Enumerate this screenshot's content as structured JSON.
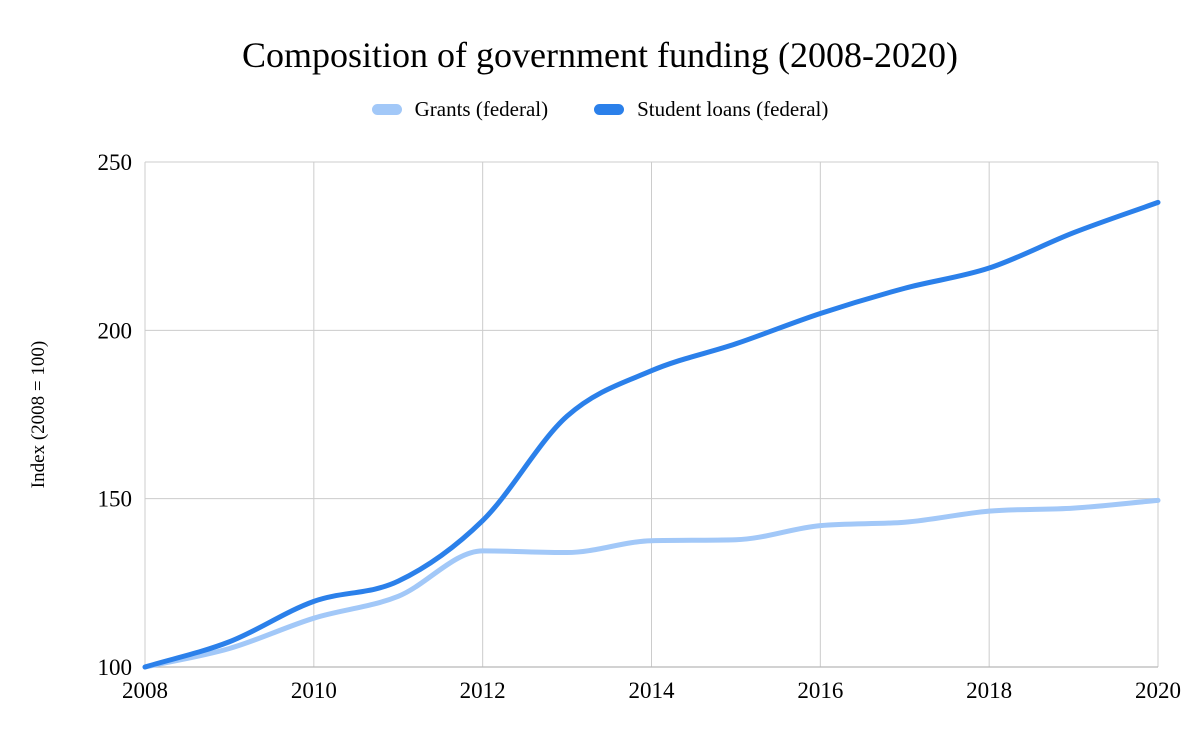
{
  "chart_data": {
    "type": "line",
    "title": "Composition of government funding (2008-2020)",
    "ylabel": "Index (2008 = 100)",
    "xlabel": "",
    "x": [
      2008,
      2009,
      2010,
      2011,
      2012,
      2013,
      2014,
      2015,
      2016,
      2017,
      2018,
      2019,
      2020
    ],
    "x_tick_labels": [
      2008,
      2010,
      2012,
      2014,
      2016,
      2018,
      2020
    ],
    "y_tick_labels": [
      100,
      150,
      200,
      250
    ],
    "xlim": [
      2008,
      2020
    ],
    "ylim": [
      100,
      250
    ],
    "grid": true,
    "legend_position": "top",
    "grid_color": "#cccccc",
    "axis_line_color": "#b7b7b7",
    "line_style": "smooth",
    "series": [
      {
        "name": "Grants (federal)",
        "color": "#a2c8f8",
        "values": [
          100,
          105.5,
          114.5,
          121,
          134.5,
          134,
          137.5,
          137.8,
          142,
          143,
          146.3,
          147.2,
          149.5
        ]
      },
      {
        "name": "Student loans (federal)",
        "color": "#2b80ea",
        "values": [
          100,
          107.5,
          119.5,
          125.5,
          143.5,
          174.5,
          188,
          196,
          205,
          212.5,
          218.5,
          229,
          238
        ]
      }
    ]
  }
}
